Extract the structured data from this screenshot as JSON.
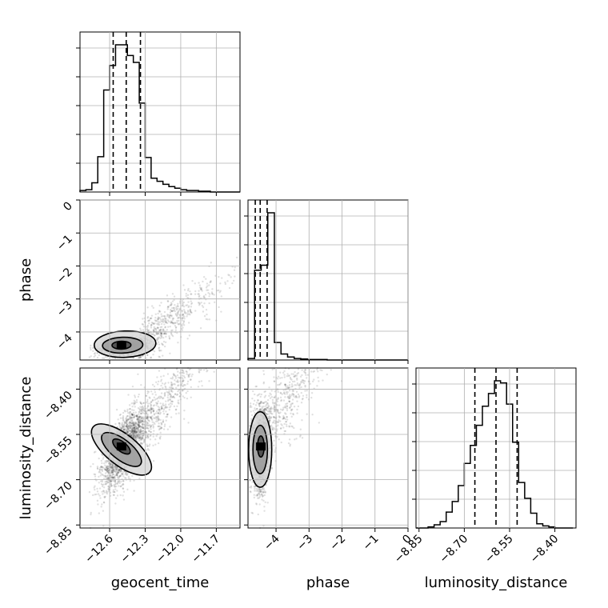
{
  "chart_data": {
    "type": "corner",
    "parameters": [
      {
        "name": "geocent_time",
        "label": "geocent_time",
        "range": [
          -12.85,
          -11.5
        ],
        "ticks": [
          -12.6,
          -12.3,
          -12.0,
          -11.7
        ],
        "tick_labels": [
          "−12.6",
          "−12.3",
          "−12.0",
          "−11.7"
        ],
        "quantiles": [
          -12.57,
          -12.46,
          -12.34
        ]
      },
      {
        "name": "phase",
        "label": "phase",
        "range": [
          -4.85,
          0
        ],
        "ticks": [
          -4,
          -3,
          -2,
          -1,
          0
        ],
        "tick_labels": [
          "−4",
          "−3",
          "−2",
          "−1",
          "0"
        ],
        "quantiles": [
          -4.63,
          -4.48,
          -4.27
        ]
      },
      {
        "name": "luminosity_distance",
        "label": "luminosity_distance",
        "range": [
          -8.86,
          -8.33
        ],
        "ticks": [
          -8.85,
          -8.7,
          -8.55,
          -8.4
        ],
        "tick_labels": [
          "−8.85",
          "−8.70",
          "−8.55",
          "−8.40"
        ],
        "quantiles": [
          -8.665,
          -8.595,
          -8.525
        ]
      }
    ],
    "row_ticks": {
      "phase": {
        "ticks": [
          0,
          -1,
          -2,
          -3,
          -4
        ],
        "tick_labels": [
          "0",
          "−1",
          "−2",
          "−3",
          "−4"
        ]
      },
      "luminosity_distance": {
        "ticks": [
          -8.4,
          -8.55,
          -8.7,
          -8.85
        ],
        "tick_labels": [
          "−8.40",
          "−8.55",
          "−8.70",
          "−8.85"
        ]
      }
    },
    "histograms": {
      "geocent_time": {
        "bin_start": -12.85,
        "bin_width": 0.05,
        "counts": [
          2,
          3,
          12,
          46,
          133,
          165,
          192,
          192,
          178,
          169,
          116,
          45,
          18,
          14,
          10,
          7,
          5,
          3,
          2,
          2,
          1,
          1,
          0,
          0,
          0,
          0,
          0
        ]
      },
      "phase": {
        "bin_start": -4.85,
        "bin_width": 0.2,
        "counts": [
          3,
          180,
          190,
          295,
          35,
          12,
          6,
          3,
          2,
          1,
          1,
          1,
          0,
          0,
          0,
          0,
          0,
          0,
          0,
          0,
          0,
          0,
          0,
          0,
          0
        ]
      },
      "luminosity_distance": {
        "bin_start": -8.86,
        "bin_width": 0.02,
        "counts": [
          0,
          0,
          1,
          3,
          6,
          15,
          25,
          40,
          61,
          78,
          97,
          115,
          127,
          139,
          137,
          117,
          81,
          43,
          28,
          14,
          4,
          2,
          1,
          0,
          0,
          0
        ]
      }
    },
    "contours": {
      "phase_vs_geocent_time": [
        {
          "cx": -12.47,
          "cy": -4.37,
          "rx": 0.26,
          "ry": 0.4,
          "rot": 0.04
        },
        {
          "cx": -12.49,
          "cy": -4.4,
          "rx": 0.17,
          "ry": 0.24,
          "rot": 0.03
        },
        {
          "cx": -12.5,
          "cy": -4.4,
          "rx": 0.08,
          "ry": 0.12,
          "rot": 0.02
        }
      ],
      "luminosity_distance_vs_geocent_time": [
        {
          "cx": -12.5,
          "cy": -8.6,
          "rx": 0.13,
          "ry": 0.12,
          "rot": 0.9
        },
        {
          "cx": -12.5,
          "cy": -8.6,
          "rx": 0.085,
          "ry": 0.08,
          "rot": 0.9
        },
        {
          "cx": -12.5,
          "cy": -8.59,
          "rx": 0.04,
          "ry": 0.035,
          "rot": 0.9
        }
      ],
      "luminosity_distance_vs_phase": [
        {
          "cx": -4.48,
          "cy": -8.6,
          "rx": 0.35,
          "ry": 0.125,
          "rot": 0
        },
        {
          "cx": -4.48,
          "cy": -8.6,
          "rx": 0.22,
          "ry": 0.08,
          "rot": 0
        },
        {
          "cx": -4.46,
          "cy": -8.59,
          "rx": 0.1,
          "ry": 0.035,
          "rot": 0
        }
      ]
    },
    "grid": true
  }
}
